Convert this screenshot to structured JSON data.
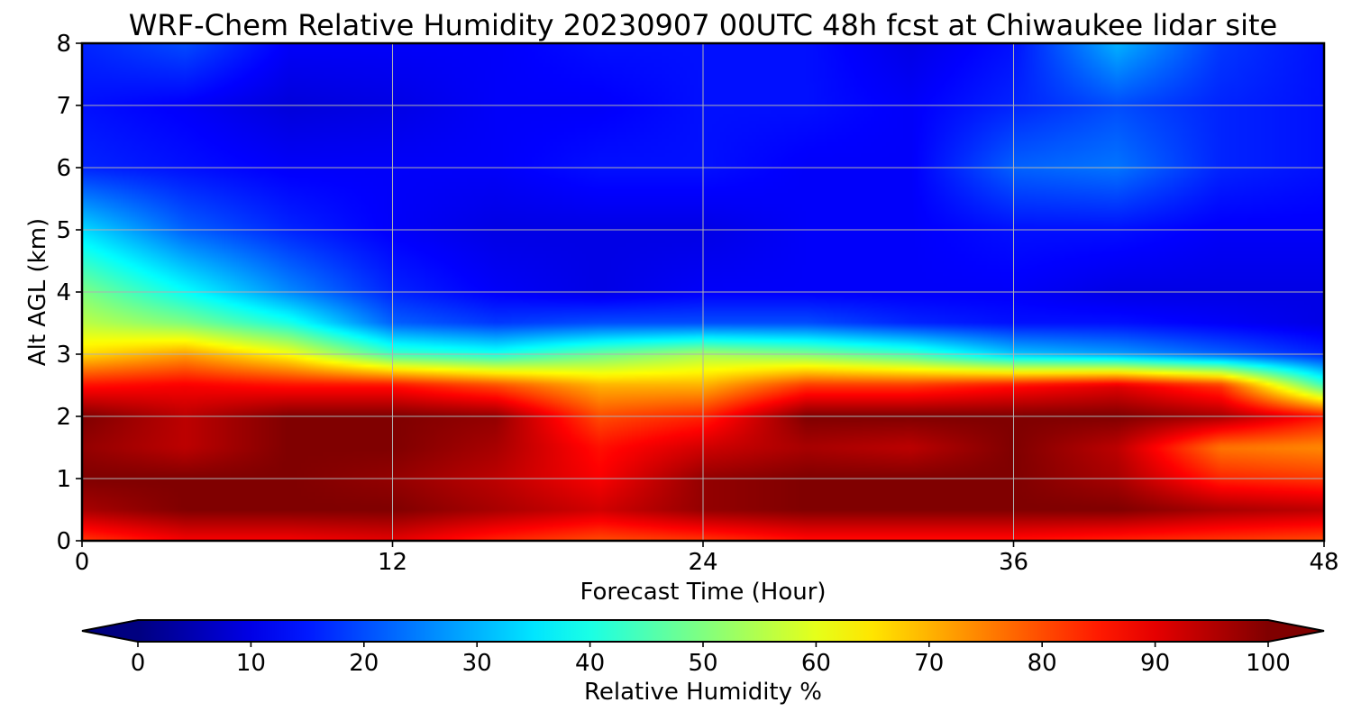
{
  "chart_data": {
    "type": "heatmap",
    "title": "WRF-Chem Relative Humidity 20230907 00UTC 48h fcst at Chiwaukee lidar site",
    "xlabel": "Forecast Time (Hour)",
    "ylabel": "Alt AGL (km)",
    "xlim": [
      0,
      48
    ],
    "ylim": [
      0,
      8
    ],
    "xticks": [
      "0",
      "12",
      "24",
      "36",
      "48"
    ],
    "yticks": [
      "0",
      "1",
      "2",
      "3",
      "4",
      "5",
      "6",
      "7",
      "8"
    ],
    "grid": true,
    "colormap": "jet",
    "colorbar": {
      "label": "Relative Humidity %",
      "range": [
        0,
        100
      ],
      "ticks": [
        "0",
        "10",
        "20",
        "30",
        "40",
        "50",
        "60",
        "70",
        "80",
        "90",
        "100"
      ],
      "extend": "both",
      "orientation": "horizontal",
      "placement": "bottom"
    },
    "x": [
      0,
      4,
      8,
      12,
      16,
      20,
      24,
      28,
      32,
      36,
      40,
      44,
      48
    ],
    "y": [
      0,
      0.5,
      1,
      1.5,
      2,
      2.5,
      3,
      3.5,
      4,
      5,
      6,
      7,
      8
    ],
    "z": [
      [
        82,
        88,
        88,
        90,
        84,
        80,
        82,
        86,
        86,
        86,
        84,
        82,
        80
      ],
      [
        96,
        100,
        100,
        100,
        96,
        92,
        98,
        100,
        100,
        100,
        100,
        96,
        94
      ],
      [
        100,
        100,
        100,
        98,
        94,
        88,
        98,
        100,
        100,
        100,
        96,
        84,
        82
      ],
      [
        98,
        94,
        100,
        100,
        96,
        86,
        92,
        96,
        94,
        100,
        94,
        76,
        74
      ],
      [
        100,
        94,
        100,
        100,
        98,
        80,
        84,
        100,
        100,
        100,
        100,
        96,
        86
      ],
      [
        86,
        88,
        86,
        86,
        80,
        70,
        70,
        82,
        82,
        86,
        90,
        82,
        44
      ],
      [
        66,
        72,
        62,
        44,
        40,
        48,
        54,
        50,
        44,
        32,
        28,
        22,
        16
      ],
      [
        56,
        50,
        40,
        22,
        18,
        20,
        20,
        20,
        16,
        14,
        14,
        12,
        10
      ],
      [
        50,
        38,
        26,
        16,
        12,
        10,
        12,
        12,
        12,
        12,
        10,
        10,
        10
      ],
      [
        34,
        22,
        16,
        12,
        10,
        10,
        10,
        12,
        12,
        14,
        14,
        12,
        12
      ],
      [
        16,
        14,
        12,
        12,
        12,
        14,
        14,
        12,
        12,
        22,
        24,
        16,
        14
      ],
      [
        14,
        12,
        9,
        10,
        12,
        12,
        14,
        14,
        12,
        16,
        20,
        16,
        14
      ],
      [
        16,
        20,
        12,
        12,
        12,
        14,
        14,
        14,
        10,
        14,
        30,
        18,
        14
      ]
    ]
  }
}
